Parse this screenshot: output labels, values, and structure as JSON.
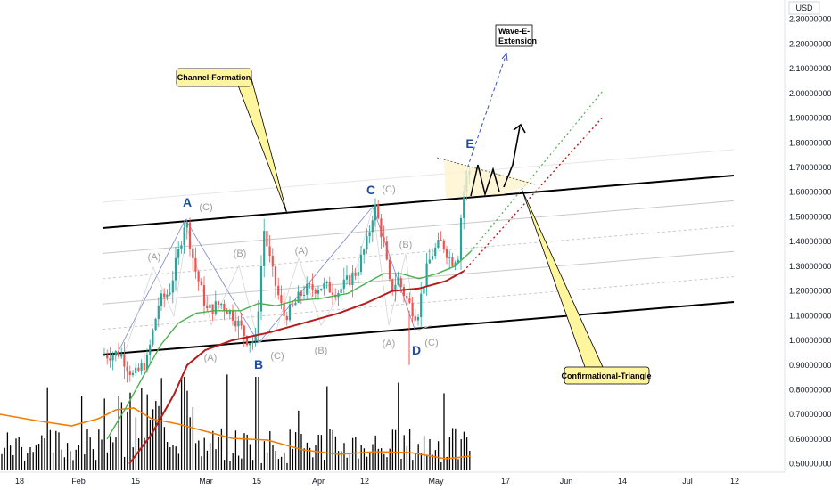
{
  "chart_data": {
    "type": "candlestick",
    "currency": "USD",
    "y_ticks": [
      "2.30000000",
      "2.20000000",
      "2.10000000",
      "2.00000000",
      "1.90000000",
      "1.80000000",
      "1.70000000",
      "1.60000000",
      "1.50000000",
      "1.40000000",
      "1.30000000",
      "1.20000000",
      "1.10000000",
      "1.00000000",
      "0.90000000",
      "0.80000000",
      "0.70000000",
      "0.60000000",
      "0.50000000"
    ],
    "ylim": [
      0.48,
      2.34
    ],
    "x_ticks": [
      "18",
      "Feb",
      "15",
      "Mar",
      "15",
      "Apr",
      "12",
      "May",
      "17",
      "Jun",
      "14",
      "Jul",
      "12"
    ],
    "annotations": {
      "channel": "Channel-Formation",
      "triangle": "Confirmational-Triangle",
      "extension_line1": "Wave-E-",
      "extension_line2": "Extension"
    },
    "wave_labels_major": [
      "A",
      "B",
      "C",
      "D",
      "E"
    ],
    "wave_labels_minor": [
      "(A)",
      "(B)",
      "(C)",
      "(A)",
      "(B)",
      "(C)",
      "(A)",
      "(B)",
      "(C)",
      "(A)",
      "(B)",
      "(C)"
    ],
    "colors": {
      "up": "#26a69a",
      "down": "#ef5350",
      "ma_fast": "#4caf50",
      "ma_slow": "#b71c1c",
      "volume_ma": "#f57c00",
      "volume": "#000000",
      "channel": "#000000",
      "callout_fill": "#fff59d",
      "wave_major": "#1e4da1",
      "wave_minor": "#9e9e9e",
      "extension": "#3f51b5"
    }
  }
}
